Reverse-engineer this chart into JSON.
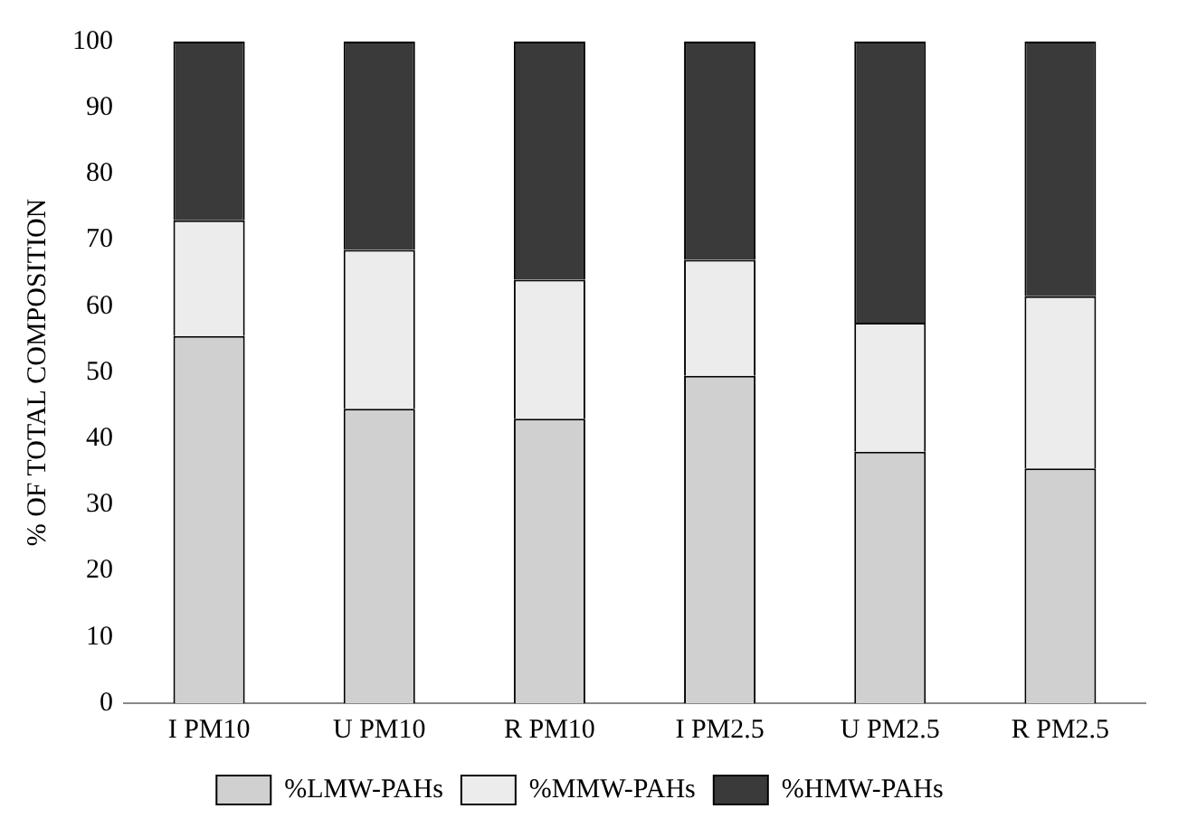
{
  "chart_data": {
    "type": "bar",
    "stacked": true,
    "ylabel": "% OF TOTAL COMPOSITION",
    "categories": [
      "I PM10",
      "U PM10",
      "R PM10",
      "I PM2.5",
      "U PM2.5",
      "R PM2.5"
    ],
    "series": [
      {
        "name": "%LMW-PAHs",
        "color": "#d0d0d0",
        "values": [
          55.5,
          44.5,
          43,
          49.5,
          38,
          35.5
        ]
      },
      {
        "name": "%MMW-PAHs",
        "color": "#ececec",
        "values": [
          17.5,
          24,
          21,
          17.5,
          19.5,
          26
        ]
      },
      {
        "name": "%HMW-PAHs",
        "color": "#3a3a3a",
        "values": [
          27,
          31.5,
          36,
          33,
          42.5,
          38.5
        ]
      }
    ],
    "ylim": [
      0,
      100
    ],
    "yticks": [
      0,
      10,
      20,
      30,
      40,
      50,
      60,
      70,
      80,
      90,
      100
    ],
    "grid": false,
    "legend": "bottom"
  }
}
